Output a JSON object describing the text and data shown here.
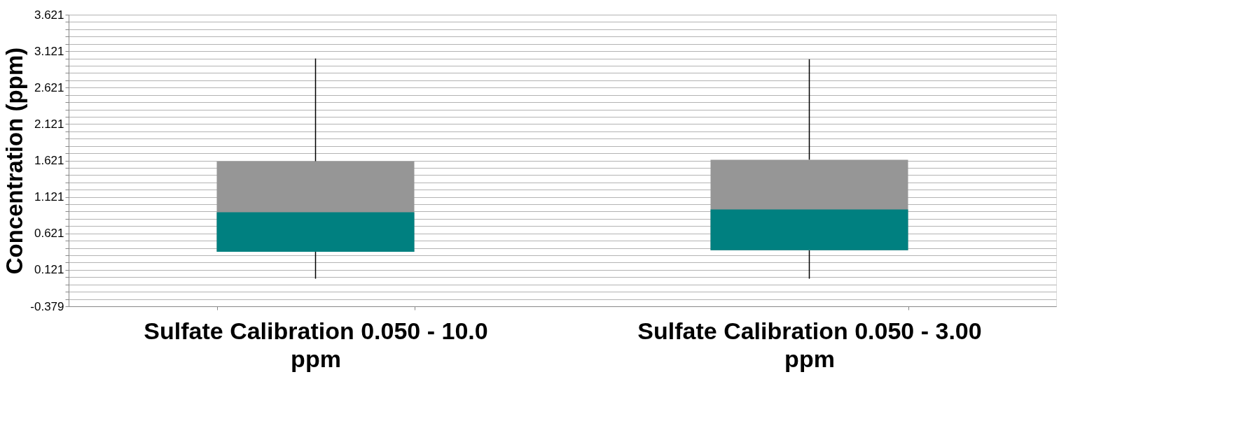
{
  "chart_data": {
    "type": "box",
    "ylabel": "Concentration (ppm)",
    "categories": [
      "Sulfate Calibration 0.050 - 10.0 ppm",
      "Sulfate Calibration 0.050 - 3.00 ppm"
    ],
    "boxes": [
      {
        "low": 0.0,
        "q1": 0.37,
        "median": 0.91,
        "q3": 1.61,
        "high": 3.02
      },
      {
        "low": 0.0,
        "q1": 0.39,
        "median": 0.95,
        "q3": 1.63,
        "high": 3.01
      }
    ],
    "colors": [
      "#008080",
      "#969696"
    ],
    "ylim": [
      -0.379,
      3.621
    ],
    "yticks": [
      -0.379,
      {
        "value": -0.279,
        "label": null
      },
      {
        "value": -0.179,
        "label": null
      },
      {
        "value": -0.079,
        "label": null
      },
      {
        "value": 0.021,
        "label": null
      },
      0.121,
      {
        "value": 0.221,
        "label": null
      },
      {
        "value": 0.321,
        "label": null
      },
      {
        "value": 0.421,
        "label": null
      },
      {
        "value": 0.521,
        "label": null
      },
      0.621,
      {
        "value": 0.721,
        "label": null
      },
      {
        "value": 0.821,
        "label": null
      },
      {
        "value": 0.921,
        "label": null
      },
      {
        "value": 1.021,
        "label": null
      },
      1.121,
      {
        "value": 1.221,
        "label": null
      },
      {
        "value": 1.321,
        "label": null
      },
      {
        "value": 1.421,
        "label": null
      },
      {
        "value": 1.521,
        "label": null
      },
      1.621,
      {
        "value": 1.721,
        "label": null
      },
      {
        "value": 1.821,
        "label": null
      },
      {
        "value": 1.921,
        "label": null
      },
      {
        "value": 2.021,
        "label": null
      },
      2.121,
      {
        "value": 2.221,
        "label": null
      },
      {
        "value": 2.321,
        "label": null
      },
      {
        "value": 2.421,
        "label": null
      },
      {
        "value": 2.521,
        "label": null
      },
      2.621,
      {
        "value": 2.721,
        "label": null
      },
      {
        "value": 2.821,
        "label": null
      },
      {
        "value": 2.921,
        "label": null
      },
      {
        "value": 3.021,
        "label": null
      },
      3.121,
      {
        "value": 3.221,
        "label": null
      },
      {
        "value": 3.321,
        "label": null
      },
      {
        "value": 3.421,
        "label": null
      },
      {
        "value": 3.521,
        "label": null
      },
      3.621
    ],
    "grid": "y"
  }
}
